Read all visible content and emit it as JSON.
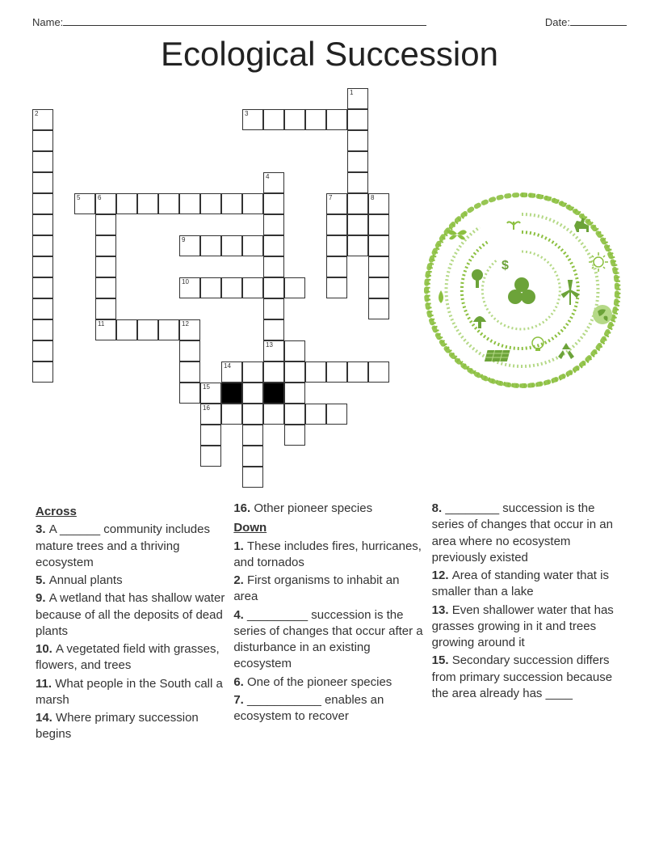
{
  "header": {
    "name_label": "Name:",
    "date_label": "Date:"
  },
  "title": "Ecological Succession",
  "crossword": {
    "cell_size": 26,
    "cells": [
      {
        "r": 0,
        "c": 15,
        "n": "1"
      },
      {
        "r": 1,
        "c": 0,
        "n": "2"
      },
      {
        "r": 1,
        "c": 10,
        "n": "3"
      },
      {
        "r": 1,
        "c": 11
      },
      {
        "r": 1,
        "c": 12
      },
      {
        "r": 1,
        "c": 13
      },
      {
        "r": 1,
        "c": 14
      },
      {
        "r": 1,
        "c": 15
      },
      {
        "r": 2,
        "c": 0
      },
      {
        "r": 2,
        "c": 15
      },
      {
        "r": 3,
        "c": 0
      },
      {
        "r": 3,
        "c": 15
      },
      {
        "r": 4,
        "c": 0
      },
      {
        "r": 4,
        "c": 11,
        "n": "4"
      },
      {
        "r": 4,
        "c": 15
      },
      {
        "r": 5,
        "c": 0
      },
      {
        "r": 5,
        "c": 2,
        "n": "5"
      },
      {
        "r": 5,
        "c": 3,
        "n": "6"
      },
      {
        "r": 5,
        "c": 4
      },
      {
        "r": 5,
        "c": 5
      },
      {
        "r": 5,
        "c": 6
      },
      {
        "r": 5,
        "c": 7
      },
      {
        "r": 5,
        "c": 8
      },
      {
        "r": 5,
        "c": 9
      },
      {
        "r": 5,
        "c": 10
      },
      {
        "r": 5,
        "c": 11
      },
      {
        "r": 5,
        "c": 14,
        "n": "7"
      },
      {
        "r": 5,
        "c": 15
      },
      {
        "r": 5,
        "c": 16,
        "n": "8"
      },
      {
        "r": 6,
        "c": 0
      },
      {
        "r": 6,
        "c": 3
      },
      {
        "r": 6,
        "c": 11
      },
      {
        "r": 6,
        "c": 14
      },
      {
        "r": 6,
        "c": 15
      },
      {
        "r": 6,
        "c": 16
      },
      {
        "r": 7,
        "c": 0
      },
      {
        "r": 7,
        "c": 3
      },
      {
        "r": 7,
        "c": 7,
        "n": "9"
      },
      {
        "r": 7,
        "c": 8
      },
      {
        "r": 7,
        "c": 9
      },
      {
        "r": 7,
        "c": 10
      },
      {
        "r": 7,
        "c": 11
      },
      {
        "r": 7,
        "c": 14
      },
      {
        "r": 7,
        "c": 15
      },
      {
        "r": 7,
        "c": 16
      },
      {
        "r": 8,
        "c": 0
      },
      {
        "r": 8,
        "c": 3
      },
      {
        "r": 8,
        "c": 11
      },
      {
        "r": 8,
        "c": 14
      },
      {
        "r": 8,
        "c": 16
      },
      {
        "r": 9,
        "c": 0
      },
      {
        "r": 9,
        "c": 3
      },
      {
        "r": 9,
        "c": 7,
        "n": "10"
      },
      {
        "r": 9,
        "c": 8
      },
      {
        "r": 9,
        "c": 9
      },
      {
        "r": 9,
        "c": 10
      },
      {
        "r": 9,
        "c": 11
      },
      {
        "r": 9,
        "c": 12
      },
      {
        "r": 9,
        "c": 14
      },
      {
        "r": 9,
        "c": 16
      },
      {
        "r": 10,
        "c": 0
      },
      {
        "r": 10,
        "c": 3
      },
      {
        "r": 10,
        "c": 11
      },
      {
        "r": 10,
        "c": 16
      },
      {
        "r": 11,
        "c": 0
      },
      {
        "r": 11,
        "c": 3,
        "n": "11"
      },
      {
        "r": 11,
        "c": 4
      },
      {
        "r": 11,
        "c": 5
      },
      {
        "r": 11,
        "c": 6
      },
      {
        "r": 11,
        "c": 7,
        "n": "12"
      },
      {
        "r": 11,
        "c": 11
      },
      {
        "r": 12,
        "c": 0
      },
      {
        "r": 12,
        "c": 7
      },
      {
        "r": 12,
        "c": 11,
        "n": "13"
      },
      {
        "r": 12,
        "c": 12
      },
      {
        "r": 13,
        "c": 0
      },
      {
        "r": 13,
        "c": 7
      },
      {
        "r": 13,
        "c": 9,
        "n": "14"
      },
      {
        "r": 13,
        "c": 10
      },
      {
        "r": 13,
        "c": 11
      },
      {
        "r": 13,
        "c": 12
      },
      {
        "r": 13,
        "c": 13
      },
      {
        "r": 13,
        "c": 14
      },
      {
        "r": 13,
        "c": 15
      },
      {
        "r": 13,
        "c": 16
      },
      {
        "r": 14,
        "c": 7
      },
      {
        "r": 14,
        "c": 8,
        "n": "15"
      },
      {
        "r": 14,
        "c": 9,
        "black": true
      },
      {
        "r": 14,
        "c": 10
      },
      {
        "r": 14,
        "c": 11,
        "black": true
      },
      {
        "r": 14,
        "c": 12
      },
      {
        "r": 15,
        "c": 8,
        "n": "16"
      },
      {
        "r": 15,
        "c": 9
      },
      {
        "r": 15,
        "c": 10
      },
      {
        "r": 15,
        "c": 11
      },
      {
        "r": 15,
        "c": 12
      },
      {
        "r": 15,
        "c": 13
      },
      {
        "r": 15,
        "c": 14
      },
      {
        "r": 16,
        "c": 8
      },
      {
        "r": 16,
        "c": 10
      },
      {
        "r": 16,
        "c": 12
      },
      {
        "r": 17,
        "c": 8
      },
      {
        "r": 17,
        "c": 10
      },
      {
        "r": 18,
        "c": 10
      }
    ]
  },
  "clues": {
    "across_label": "Across",
    "down_label": "Down",
    "col1": [
      {
        "num": "3.",
        "text": "A ______ community includes mature trees and a thriving ecosystem"
      },
      {
        "num": "5.",
        "text": "Annual plants"
      },
      {
        "num": "9.",
        "text": "A wetland that has shallow water because of all the deposits of dead plants"
      },
      {
        "num": "10.",
        "text": "A vegetated field with grasses, flowers, and trees"
      },
      {
        "num": "11.",
        "text": "What people in the South call a marsh"
      },
      {
        "num": "14.",
        "text": "Where primary succession begins"
      }
    ],
    "col2_top": [
      {
        "num": "16.",
        "text": "Other pioneer species"
      }
    ],
    "col2_down": [
      {
        "num": "1.",
        "text": "These includes fires, hurricanes, and tornados"
      },
      {
        "num": "2.",
        "text": "First organisms to inhabit an area"
      },
      {
        "num": "4.",
        "text": "_________ succession is the series of changes that occur after a disturbance in an existing ecosystem"
      },
      {
        "num": "6.",
        "text": "One of the pioneer species"
      },
      {
        "num": "7.",
        "text": "___________ enables an ecosystem to recover"
      }
    ],
    "col3": [
      {
        "num": "8.",
        "text": "________ succession is the series of changes that occur in an area where no ecosystem previously existed"
      },
      {
        "num": "12.",
        "text": "Area of standing water that is smaller than a lake"
      },
      {
        "num": "13.",
        "text": "Even shallower water that has grasses growing in it and trees growing around it"
      },
      {
        "num": "15.",
        "text": "Secondary succession differs from primary succession because the area already has ____"
      }
    ]
  },
  "colors": {
    "eco_green_dark": "#6ca339",
    "eco_green_mid": "#8cc040",
    "eco_green_light": "#b5d987"
  }
}
